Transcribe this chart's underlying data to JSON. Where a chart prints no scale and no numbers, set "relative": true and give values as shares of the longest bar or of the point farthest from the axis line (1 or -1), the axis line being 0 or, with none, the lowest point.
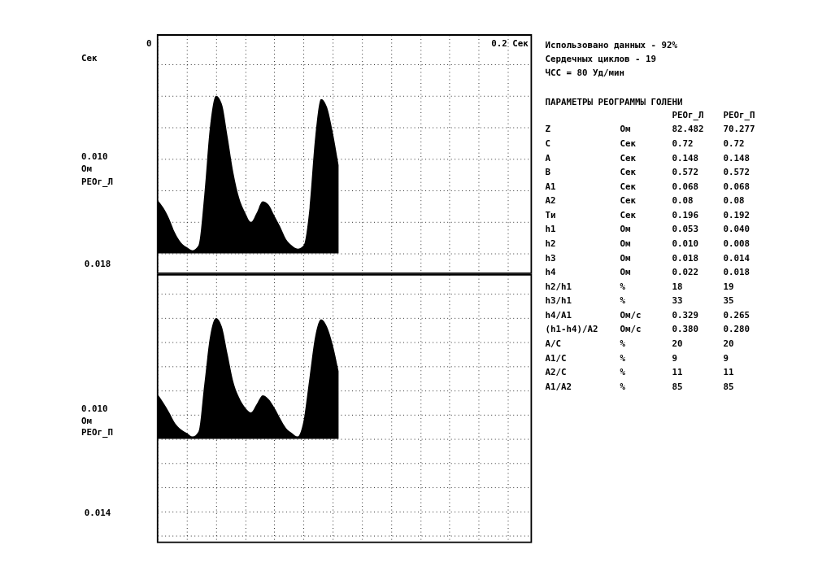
{
  "chart_data": [
    {
      "type": "area",
      "relative": true,
      "color": "#000000",
      "grid": true,
      "tick_labels": false,
      "categories": [
        null,
        null,
        null,
        null,
        null,
        null,
        null,
        null,
        null,
        null,
        null,
        null,
        null,
        null,
        null,
        null,
        null,
        null,
        null,
        null,
        null,
        null,
        null,
        null,
        null,
        null,
        null,
        null,
        null,
        null,
        null,
        null,
        null,
        null,
        null,
        null,
        null,
        null,
        null,
        null,
        null,
        null,
        null,
        null,
        null,
        null,
        null,
        null,
        null,
        null,
        null,
        null,
        null,
        null,
        null,
        null,
        null,
        null,
        null,
        null,
        null,
        null,
        null,
        null,
        null
      ],
      "values": [
        0.34,
        0.29,
        0.22,
        0.13,
        0.07,
        0.04,
        0.02,
        0.05,
        0.37,
        0.81,
        1.0,
        0.95,
        0.74,
        0.51,
        0.35,
        0.26,
        0.2,
        0.26,
        0.33,
        0.31,
        0.24,
        0.17,
        0.09,
        0.05,
        0.03,
        0.05,
        0.28,
        0.74,
        0.98,
        0.93,
        0.77,
        0.56,
        null,
        null,
        null,
        null,
        null,
        null,
        null,
        null,
        null,
        null,
        null,
        null,
        null,
        null,
        null,
        null,
        null,
        null,
        null,
        null,
        null,
        null,
        null,
        null,
        null,
        null,
        null,
        null,
        null,
        null,
        null,
        null,
        null
      ],
      "annotations": [
        "0",
        "Сек",
        "0.2 Сек",
        "0.010",
        "Ом",
        "РЕОг_Л",
        "0.018"
      ]
    },
    {
      "type": "area",
      "relative": true,
      "color": "#000000",
      "grid": true,
      "tick_labels": false,
      "categories": [
        null,
        null,
        null,
        null,
        null,
        null,
        null,
        null,
        null,
        null,
        null,
        null,
        null,
        null,
        null,
        null,
        null,
        null,
        null,
        null,
        null,
        null,
        null,
        null,
        null,
        null,
        null,
        null,
        null,
        null,
        null,
        null,
        null,
        null,
        null,
        null,
        null,
        null,
        null,
        null,
        null,
        null,
        null,
        null,
        null,
        null,
        null,
        null,
        null,
        null,
        null,
        null,
        null,
        null,
        null,
        null,
        null,
        null,
        null,
        null,
        null,
        null,
        null,
        null,
        null
      ],
      "values": [
        0.37,
        0.3,
        0.22,
        0.13,
        0.08,
        0.05,
        0.02,
        0.06,
        0.45,
        0.85,
        1.0,
        0.93,
        0.7,
        0.47,
        0.34,
        0.26,
        0.22,
        0.29,
        0.36,
        0.33,
        0.26,
        0.17,
        0.09,
        0.05,
        0.02,
        0.15,
        0.5,
        0.85,
        0.99,
        0.93,
        0.78,
        0.56,
        null,
        null,
        null,
        null,
        null,
        null,
        null,
        null,
        null,
        null,
        null,
        null,
        null,
        null,
        null,
        null,
        null,
        null,
        null,
        null,
        null,
        null,
        null,
        null,
        null,
        null,
        null,
        null,
        null,
        null,
        null,
        null,
        null
      ],
      "annotations": [
        "0.010",
        "Ом",
        "РЕОг_П",
        "0.014"
      ]
    },
    {
      "type": "other",
      "title": "ПАРАМЕТРЫ РЕОГРАММЫ ГОЛЕНИ",
      "annotations": [
        "Использовано данных - 92%",
        "Сердечных циклов - 19",
        "ЧСС = 80 Уд/мин",
        "РЕОг_Л  РЕОг_П",
        "Z  Ом  82.482  70.277",
        "C  Сек  0.72  0.72",
        "A  Сек  0.148  0.148",
        "B  Сек  0.572  0.572",
        "A1  Сек  0.068  0.068",
        "A2  Сек  0.08  0.08",
        "Ти  Сек  0.196  0.192",
        "h1  Ом  0.053  0.040",
        "h2  Ом  0.010  0.008",
        "h3  Ом  0.018  0.014",
        "h4  Ом  0.022  0.018",
        "h2/h1  %  18  19",
        "h3/h1  %  33  35",
        "h4/A1  Ом/с  0.329  0.265",
        "(h1-h4)/A2  Ом/с  0.380  0.280",
        "A/C  %  20  20",
        "A1/C  %  9  9",
        "A2/C  %  11  11",
        "A1/A2  %  85  85"
      ]
    }
  ]
}
